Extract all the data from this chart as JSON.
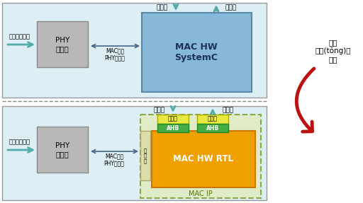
{
  "top_panel_color": "#ddeef5",
  "bottom_panel_color": "#ddeef5",
  "border_color": "#999999",
  "phy_box_color": "#b8b8b8",
  "mac_systemc_color": "#88b8d8",
  "mac_rtl_color": "#f0a000",
  "mac_ip_border_color": "#88aa44",
  "mac_ip_bg_color": "#e0ecc8",
  "adapter_color": "#e8e840",
  "ahb_color": "#44aa44",
  "arrow_teal": "#55aaaa",
  "arrow_dark": "#446688",
  "red_arrow_color": "#bb1111",
  "title_top": "MAC HW\nSystemC",
  "title_bottom": "MAC HW RTL",
  "phy_label": "PHY\n仿真器",
  "mac_ip_label": "MAC IP",
  "inject_label": "測試向量注入",
  "interface_label": "MAC層與\nPHY層接口",
  "slave_channel": "從信道",
  "master_channel": "主信道",
  "side_label": "插入\n系統(tǒng)級\n平臺",
  "adapter_label": "適配器",
  "ahb_label": "AHB",
  "fanzhao_label": "反\n照\n器",
  "fig_w": 5.12,
  "fig_h": 2.87,
  "dpi": 100
}
